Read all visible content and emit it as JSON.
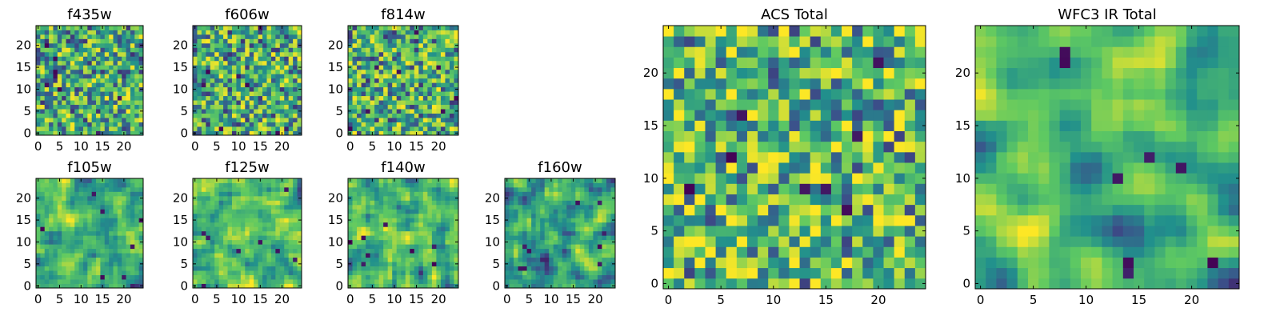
{
  "figure": {
    "colormap": [
      "#440154",
      "#3b528b",
      "#21908c",
      "#5ec962",
      "#fde725"
    ]
  },
  "chart_data": [
    {
      "type": "heatmap",
      "title": "f435w",
      "size": 25,
      "seed": 11,
      "smooth": 0,
      "bias": 0.0,
      "xticks": [
        0,
        5,
        10,
        15,
        20
      ],
      "yticks": [
        0,
        5,
        10,
        15,
        20
      ],
      "xlim": [
        0,
        24
      ],
      "ylim": [
        0,
        24
      ],
      "grid": false
    },
    {
      "type": "heatmap",
      "title": "f606w",
      "size": 25,
      "seed": 23,
      "smooth": 0,
      "bias": 0.0,
      "xticks": [
        0,
        5,
        10,
        15,
        20
      ],
      "yticks": [
        0,
        5,
        10,
        15,
        20
      ],
      "xlim": [
        0,
        24
      ],
      "ylim": [
        0,
        24
      ],
      "grid": false
    },
    {
      "type": "heatmap",
      "title": "f814w",
      "size": 25,
      "seed": 37,
      "smooth": 0,
      "bias": 0.0,
      "xticks": [
        0,
        5,
        10,
        15,
        20
      ],
      "yticks": [
        0,
        5,
        10,
        15,
        20
      ],
      "xlim": [
        0,
        24
      ],
      "ylim": [
        0,
        24
      ],
      "grid": false
    },
    {
      "type": "heatmap",
      "title": "f105w",
      "size": 25,
      "seed": 41,
      "smooth": 1,
      "bias": 0.0,
      "xticks": [
        0,
        5,
        10,
        15,
        20
      ],
      "yticks": [
        0,
        5,
        10,
        15,
        20
      ],
      "xlim": [
        0,
        24
      ],
      "ylim": [
        0,
        24
      ],
      "grid": false
    },
    {
      "type": "heatmap",
      "title": "f125w",
      "size": 25,
      "seed": 53,
      "smooth": 1,
      "bias": 0.05,
      "xticks": [
        0,
        5,
        10,
        15,
        20
      ],
      "yticks": [
        0,
        5,
        10,
        15,
        20
      ],
      "xlim": [
        0,
        24
      ],
      "ylim": [
        0,
        24
      ],
      "grid": false
    },
    {
      "type": "heatmap",
      "title": "f140w",
      "size": 25,
      "seed": 67,
      "smooth": 1,
      "bias": 0.0,
      "xticks": [
        0,
        5,
        10,
        15,
        20
      ],
      "yticks": [
        0,
        5,
        10,
        15,
        20
      ],
      "xlim": [
        0,
        24
      ],
      "ylim": [
        0,
        24
      ],
      "grid": false
    },
    {
      "type": "heatmap",
      "title": "f160w",
      "size": 25,
      "seed": 79,
      "smooth": 1,
      "bias": -0.05,
      "xticks": [
        0,
        5,
        10,
        15,
        20
      ],
      "yticks": [
        0,
        5,
        10,
        15,
        20
      ],
      "xlim": [
        0,
        24
      ],
      "ylim": [
        0,
        24
      ],
      "grid": false
    },
    {
      "type": "heatmap",
      "title": "ACS Total",
      "size": 25,
      "seed": 97,
      "smooth": 0,
      "bias": 0.05,
      "xticks": [
        0,
        5,
        10,
        15,
        20
      ],
      "yticks": [
        0,
        5,
        10,
        15,
        20
      ],
      "xlim": [
        0,
        24
      ],
      "ylim": [
        0,
        24
      ],
      "grid": false
    },
    {
      "type": "heatmap",
      "title": "WFC3 IR Total",
      "size": 25,
      "seed": 131,
      "smooth": 2,
      "bias": 0.0,
      "xticks": [
        0,
        5,
        10,
        15,
        20
      ],
      "yticks": [
        0,
        5,
        10,
        15,
        20
      ],
      "xlim": [
        0,
        24
      ],
      "ylim": [
        0,
        24
      ],
      "grid": false
    }
  ]
}
